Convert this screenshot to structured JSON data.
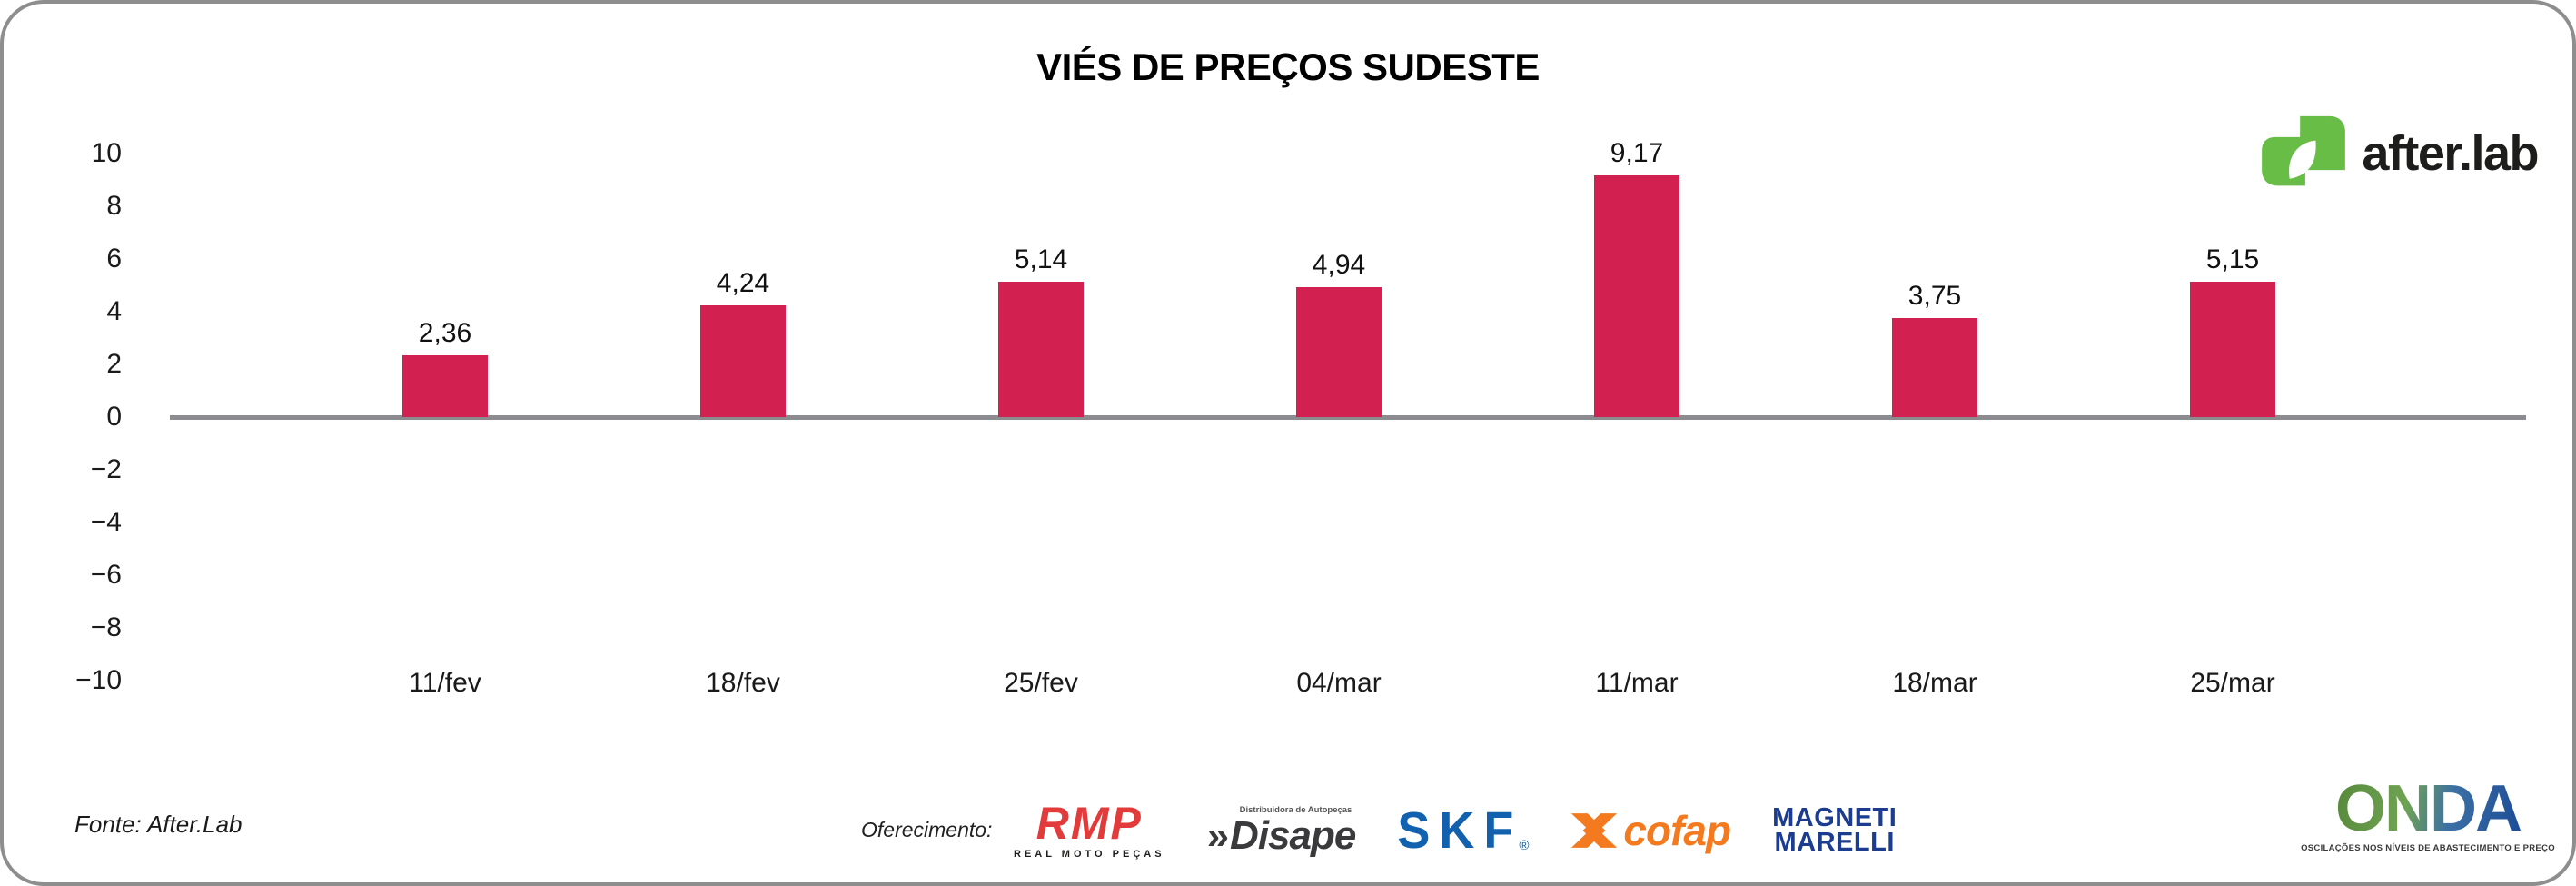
{
  "title": "VIÉS DE PREÇOS SUDESTE",
  "header_logo": {
    "text": "after.lab",
    "icon_color": "#67bd45",
    "text_color": "#1d1d1b"
  },
  "chart_data": {
    "type": "bar",
    "title": "VIÉS DE PREÇOS SUDESTE",
    "categories": [
      "11/fev",
      "18/fev",
      "25/fev",
      "04/mar",
      "11/mar",
      "18/mar",
      "25/mar"
    ],
    "values": [
      2.36,
      4.24,
      5.14,
      4.94,
      9.17,
      3.75,
      5.15
    ],
    "value_labels": [
      "2,36",
      "4,24",
      "5,14",
      "4,94",
      "9,17",
      "3,75",
      "5,15"
    ],
    "xlabel": "",
    "ylabel": "",
    "ylim": [
      -10,
      10
    ],
    "yticks": [
      10,
      8,
      6,
      4,
      2,
      0,
      -2,
      -4,
      -6,
      -8,
      -10
    ],
    "ytick_labels": [
      "10",
      "8",
      "6",
      "4",
      "2",
      "0",
      "−2",
      "−4",
      "−6",
      "−8",
      "−10"
    ],
    "bar_color": "#d22150",
    "baseline_color": "#8c8c90",
    "grid": false,
    "legend": false
  },
  "footer": {
    "source": "Fonte: After.Lab",
    "sponsor_label": "Oferecimento:",
    "sponsors": [
      {
        "id": "rmp",
        "text": "RMP",
        "subtext": "REAL MOTO PEÇAS",
        "color": "#e23b3b",
        "subcolor": "#1d1d1b"
      },
      {
        "id": "disape",
        "toptext": "Distribuidora de Autopeças",
        "chevrons": "»",
        "text": "Disape",
        "color": "#3a3a3c"
      },
      {
        "id": "skf",
        "text": "SKF",
        "reg": "®",
        "color": "#1261ae"
      },
      {
        "id": "cofap",
        "text": "cofap",
        "color": "#f47a20"
      },
      {
        "id": "magneti-marelli",
        "line1": "MAGNETI",
        "line2": "MARELLI",
        "color": "#1c3d8f"
      }
    ],
    "onda": {
      "text": "ONDA",
      "tagline": "OSCILAÇÕES NOS NÍVEIS DE ABASTECIMENTO E PREÇO",
      "gradient": [
        "#57883b",
        "#6fa352",
        "#3c6fa5",
        "#1b4c96"
      ],
      "tagline_color": "#3a3a3a"
    }
  }
}
